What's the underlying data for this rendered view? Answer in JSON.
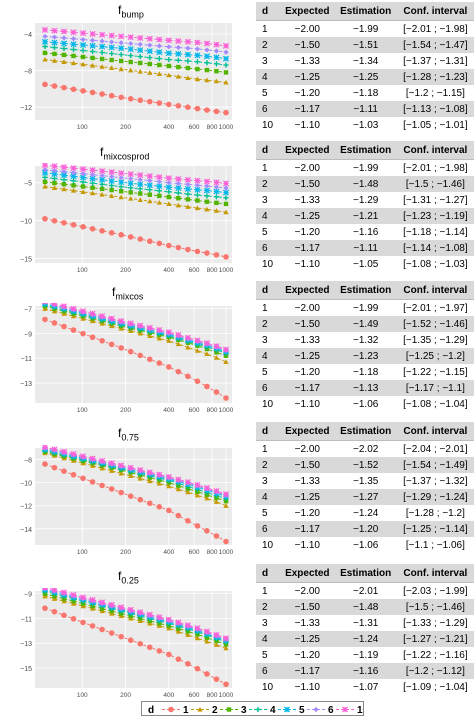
{
  "chart_data": [
    {
      "type": "line",
      "title": "f",
      "title_sub": "bump",
      "x": [
        100,
        200,
        400,
        600,
        800,
        1000
      ],
      "xticks": [
        100,
        200,
        400,
        600,
        800,
        1000
      ],
      "xscale": "log",
      "yticks": [
        -12,
        -8,
        -4
      ],
      "ylim": [
        -13.4,
        -2.8
      ],
      "grid": true,
      "series": [
        {
          "name": "1",
          "values": [
            -10.2,
            -11.0,
            -11.7,
            -12.1,
            -12.4,
            -12.6
          ]
        },
        {
          "name": "2",
          "values": [
            -7.3,
            -7.9,
            -8.5,
            -8.9,
            -9.1,
            -9.3
          ]
        },
        {
          "name": "3",
          "values": [
            -6.5,
            -7.0,
            -7.5,
            -7.8,
            -8.0,
            -8.2
          ]
        },
        {
          "name": "4",
          "values": [
            -5.8,
            -6.3,
            -6.8,
            -7.0,
            -7.2,
            -7.4
          ]
        },
        {
          "name": "5",
          "values": [
            -5.2,
            -5.6,
            -6.1,
            -6.3,
            -6.5,
            -6.7
          ]
        },
        {
          "name": "6",
          "values": [
            -4.6,
            -5.0,
            -5.4,
            -5.6,
            -5.8,
            -6.0
          ]
        },
        {
          "name": "10",
          "values": [
            -3.9,
            -4.3,
            -4.7,
            -4.9,
            -5.1,
            -5.3
          ]
        }
      ]
    },
    {
      "type": "line",
      "title": "f",
      "title_sub": "mixcosprod",
      "x": [
        100,
        200,
        400,
        600,
        800,
        1000
      ],
      "xticks": [
        100,
        200,
        400,
        600,
        800,
        1000
      ],
      "xscale": "log",
      "yticks": [
        -15,
        -10,
        -5
      ],
      "ylim": [
        -15.6,
        -2.8
      ],
      "grid": true,
      "series": [
        {
          "name": "1",
          "values": [
            -10.8,
            -12.0,
            -13.3,
            -14.0,
            -14.4,
            -14.8
          ]
        },
        {
          "name": "2",
          "values": [
            -6.2,
            -7.0,
            -7.8,
            -8.3,
            -8.6,
            -8.9
          ]
        },
        {
          "name": "3",
          "values": [
            -5.5,
            -6.2,
            -6.9,
            -7.3,
            -7.6,
            -7.8
          ]
        },
        {
          "name": "4",
          "values": [
            -4.9,
            -5.6,
            -6.2,
            -6.6,
            -6.8,
            -7.0
          ]
        },
        {
          "name": "5",
          "values": [
            -4.3,
            -5.0,
            -5.6,
            -5.9,
            -6.1,
            -6.3
          ]
        },
        {
          "name": "6",
          "values": [
            -3.8,
            -4.4,
            -5.0,
            -5.3,
            -5.5,
            -5.7
          ]
        },
        {
          "name": "10",
          "values": [
            -3.2,
            -3.8,
            -4.4,
            -4.7,
            -4.9,
            -5.1
          ]
        }
      ]
    },
    {
      "type": "line",
      "title": "f",
      "title_sub": "mixcos",
      "x": [
        100,
        200,
        400,
        600,
        800,
        1000
      ],
      "xticks": [
        100,
        200,
        400,
        600,
        800,
        1000
      ],
      "xscale": "log",
      "yticks": [
        -13,
        -11,
        -9,
        -7
      ],
      "ylim": [
        -14.6,
        -6.8
      ],
      "grid": true,
      "series": [
        {
          "name": "1",
          "values": [
            -9.0,
            -10.3,
            -11.7,
            -12.7,
            -13.5,
            -14.2
          ]
        },
        {
          "name": "2",
          "values": [
            -7.8,
            -8.7,
            -9.6,
            -10.3,
            -10.8,
            -11.3
          ]
        },
        {
          "name": "3",
          "values": [
            -7.6,
            -8.5,
            -9.3,
            -9.9,
            -10.4,
            -10.8
          ]
        },
        {
          "name": "4",
          "values": [
            -7.5,
            -8.4,
            -9.2,
            -9.8,
            -10.2,
            -10.6
          ]
        },
        {
          "name": "5",
          "values": [
            -7.4,
            -8.3,
            -9.1,
            -9.7,
            -10.1,
            -10.5
          ]
        },
        {
          "name": "6",
          "values": [
            -7.3,
            -8.2,
            -9.0,
            -9.6,
            -10.0,
            -10.4
          ]
        },
        {
          "name": "10",
          "values": [
            -7.2,
            -8.1,
            -8.9,
            -9.5,
            -9.9,
            -10.3
          ]
        }
      ]
    },
    {
      "type": "line",
      "title": "f",
      "title_sub": "0.75",
      "x": [
        100,
        200,
        400,
        600,
        800,
        1000
      ],
      "xticks": [
        100,
        200,
        400,
        600,
        800,
        1000
      ],
      "xscale": "log",
      "yticks": [
        -14,
        -12,
        -10,
        -8
      ],
      "ylim": [
        -15.4,
        -7.0
      ],
      "grid": true,
      "series": [
        {
          "name": "1",
          "values": [
            -9.6,
            -11.0,
            -12.4,
            -13.6,
            -14.4,
            -15.1
          ]
        },
        {
          "name": "2",
          "values": [
            -8.3,
            -9.3,
            -10.3,
            -11.0,
            -11.5,
            -12.0
          ]
        },
        {
          "name": "3",
          "values": [
            -8.1,
            -9.0,
            -10.0,
            -10.7,
            -11.2,
            -11.6
          ]
        },
        {
          "name": "4",
          "values": [
            -8.0,
            -8.9,
            -9.8,
            -10.5,
            -11.0,
            -11.4
          ]
        },
        {
          "name": "5",
          "values": [
            -7.9,
            -8.8,
            -9.7,
            -10.3,
            -10.8,
            -11.2
          ]
        },
        {
          "name": "6",
          "values": [
            -7.8,
            -8.7,
            -9.6,
            -10.2,
            -10.7,
            -11.1
          ]
        },
        {
          "name": "10",
          "values": [
            -7.7,
            -8.6,
            -9.5,
            -10.1,
            -10.6,
            -11.0
          ]
        }
      ]
    },
    {
      "type": "line",
      "title": "f",
      "title_sub": "0.25",
      "x": [
        100,
        200,
        400,
        600,
        800,
        1000
      ],
      "xticks": [
        100,
        200,
        400,
        600,
        800,
        1000
      ],
      "xscale": "log",
      "yticks": [
        -15,
        -13,
        -11,
        -9
      ],
      "ylim": [
        -16.6,
        -8.8
      ],
      "grid": true,
      "series": [
        {
          "name": "1",
          "values": [
            -11.3,
            -12.6,
            -13.9,
            -14.9,
            -15.7,
            -16.3
          ]
        },
        {
          "name": "2",
          "values": [
            -10.0,
            -10.9,
            -11.8,
            -12.5,
            -13.0,
            -13.4
          ]
        },
        {
          "name": "3",
          "values": [
            -9.8,
            -10.7,
            -11.6,
            -12.2,
            -12.7,
            -13.1
          ]
        },
        {
          "name": "4",
          "values": [
            -9.6,
            -10.5,
            -11.4,
            -12.0,
            -12.5,
            -12.9
          ]
        },
        {
          "name": "5",
          "values": [
            -9.5,
            -10.4,
            -11.3,
            -11.9,
            -12.4,
            -12.8
          ]
        },
        {
          "name": "6",
          "values": [
            -9.4,
            -10.3,
            -11.2,
            -11.8,
            -12.3,
            -12.7
          ]
        },
        {
          "name": "10",
          "values": [
            -9.3,
            -10.2,
            -11.1,
            -11.7,
            -12.2,
            -12.6
          ]
        }
      ]
    }
  ],
  "colors": {
    "1": "#f8766d",
    "2": "#c49a00",
    "3": "#53b400",
    "4": "#00c094",
    "5": "#00b6eb",
    "6": "#a58aff",
    "10": "#fb61d7"
  },
  "legend": {
    "title": "d",
    "items": [
      "1",
      "2",
      "3",
      "4",
      "5",
      "6",
      "10"
    ]
  },
  "tables": [
    {
      "headers": [
        "d",
        "Expected",
        "Estimation",
        "Conf. interval"
      ],
      "rows": [
        [
          "1",
          "−2.00",
          "−1.99",
          "[−2.01 ; −1.98]"
        ],
        [
          "2",
          "−1.50",
          "−1.51",
          "[−1.54 ; −1.47]"
        ],
        [
          "3",
          "−1.33",
          "−1.34",
          "[−1.37 ; −1.31]"
        ],
        [
          "4",
          "−1.25",
          "−1.25",
          "[−1.28 ; −1.23]"
        ],
        [
          "5",
          "−1.20",
          "−1.18",
          "[−1.2 ; −1.15]"
        ],
        [
          "6",
          "−1.17",
          "−1.11",
          "[−1.13 ; −1.08]"
        ],
        [
          "10",
          "−1.10",
          "−1.03",
          "[−1.05 ; −1.01]"
        ]
      ]
    },
    {
      "headers": [
        "d",
        "Expected",
        "Estimation",
        "Conf. interval"
      ],
      "rows": [
        [
          "1",
          "−2.00",
          "−1.99",
          "[−2.01 ; −1.98]"
        ],
        [
          "2",
          "−1.50",
          "−1.48",
          "[−1.5 ; −1.46]"
        ],
        [
          "3",
          "−1.33",
          "−1.29",
          "[−1.31 ; −1.27]"
        ],
        [
          "4",
          "−1.25",
          "−1.21",
          "[−1.23 ; −1.19]"
        ],
        [
          "5",
          "−1.20",
          "−1.16",
          "[−1.18 ; −1.14]"
        ],
        [
          "6",
          "−1.17",
          "−1.11",
          "[−1.14 ; −1.08]"
        ],
        [
          "10",
          "−1.10",
          "−1.05",
          "[−1.08 ; −1.03]"
        ]
      ]
    },
    {
      "headers": [
        "d",
        "Expected",
        "Estimation",
        "Conf. interval"
      ],
      "rows": [
        [
          "1",
          "−2.00",
          "−1.99",
          "[−2.01 ; −1.97]"
        ],
        [
          "2",
          "−1.50",
          "−1.49",
          "[−1.52 ; −1.46]"
        ],
        [
          "3",
          "−1.33",
          "−1.32",
          "[−1.35 ; −1.29]"
        ],
        [
          "4",
          "−1.25",
          "−1.23",
          "[−1.25 ; −1.2]"
        ],
        [
          "5",
          "−1.20",
          "−1.18",
          "[−1.22 ; −1.15]"
        ],
        [
          "6",
          "−1.17",
          "−1.13",
          "[−1.17 ; −1.1]"
        ],
        [
          "10",
          "−1.10",
          "−1.06",
          "[−1.08 ; −1.04]"
        ]
      ]
    },
    {
      "headers": [
        "d",
        "Expected",
        "Estimation",
        "Conf. interval"
      ],
      "rows": [
        [
          "1",
          "−2.00",
          "−2.02",
          "[−2.04 ; −2.01]"
        ],
        [
          "2",
          "−1.50",
          "−1.52",
          "[−1.54 ; −1.49]"
        ],
        [
          "3",
          "−1.33",
          "−1.35",
          "[−1.37 ; −1.32]"
        ],
        [
          "4",
          "−1.25",
          "−1.27",
          "[−1.29 ; −1.24]"
        ],
        [
          "5",
          "−1.20",
          "−1.24",
          "[−1.28 ; −1.2]"
        ],
        [
          "6",
          "−1.17",
          "−1.20",
          "[−1.25 ; −1.14]"
        ],
        [
          "10",
          "−1.10",
          "−1.06",
          "[−1.1 ; −1.06]"
        ]
      ]
    },
    {
      "headers": [
        "d",
        "Expected",
        "Estimation",
        "Conf. interval"
      ],
      "rows": [
        [
          "1",
          "−2.00",
          "−2.01",
          "[−2.03 ; −1.99]"
        ],
        [
          "2",
          "−1.50",
          "−1.48",
          "[−1.5 ; −1.46]"
        ],
        [
          "3",
          "−1.33",
          "−1.31",
          "[−1.33 ; −1.29]"
        ],
        [
          "4",
          "−1.25",
          "−1.24",
          "[−1.27 ; −1.21]"
        ],
        [
          "5",
          "−1.20",
          "−1.19",
          "[−1.22 ; −1.16]"
        ],
        [
          "6",
          "−1.17",
          "−1.16",
          "[−1.2 ; −1.12]"
        ],
        [
          "10",
          "−1.10",
          "−1.07",
          "[−1.09 ; −1.04]"
        ]
      ]
    }
  ]
}
